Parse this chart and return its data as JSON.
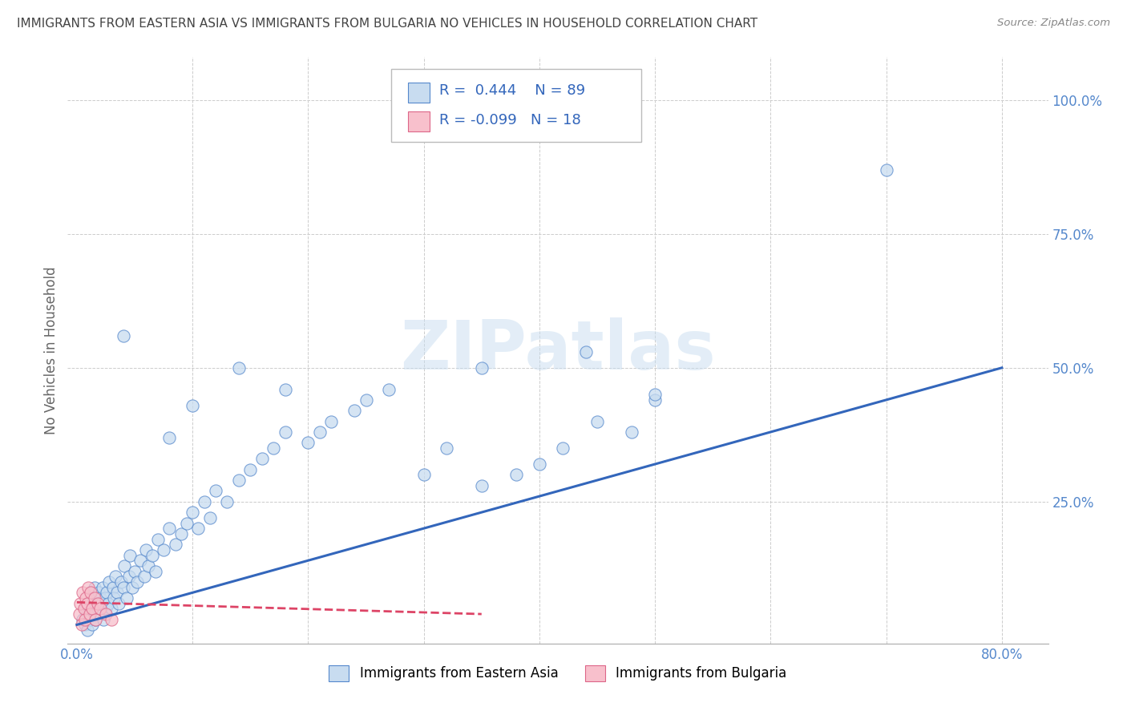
{
  "title": "IMMIGRANTS FROM EASTERN ASIA VS IMMIGRANTS FROM BULGARIA NO VEHICLES IN HOUSEHOLD CORRELATION CHART",
  "source": "Source: ZipAtlas.com",
  "ylabel": "No Vehicles in Household",
  "r1": 0.444,
  "n1": 89,
  "r2": -0.099,
  "n2": 18,
  "color1_fill": "#c8dcf0",
  "color1_edge": "#5588cc",
  "color2_fill": "#f8c0cc",
  "color2_edge": "#dd6688",
  "line1_color": "#3366bb",
  "line2_color": "#dd4466",
  "background_color": "#ffffff",
  "grid_color": "#cccccc",
  "title_color": "#444444",
  "watermark_color": "#c8ddf0",
  "legend1_label": "Immigrants from Eastern Asia",
  "legend2_label": "Immigrants from Bulgaria",
  "xlim": [
    -0.008,
    0.84
  ],
  "ylim": [
    -0.015,
    1.08
  ],
  "scatter1_x": [
    0.005,
    0.007,
    0.008,
    0.009,
    0.01,
    0.01,
    0.011,
    0.012,
    0.013,
    0.013,
    0.014,
    0.015,
    0.015,
    0.016,
    0.017,
    0.018,
    0.019,
    0.02,
    0.02,
    0.021,
    0.022,
    0.023,
    0.024,
    0.025,
    0.026,
    0.027,
    0.028,
    0.03,
    0.031,
    0.032,
    0.033,
    0.035,
    0.036,
    0.038,
    0.04,
    0.041,
    0.043,
    0.045,
    0.046,
    0.048,
    0.05,
    0.052,
    0.055,
    0.058,
    0.06,
    0.062,
    0.065,
    0.068,
    0.07,
    0.075,
    0.08,
    0.085,
    0.09,
    0.095,
    0.1,
    0.105,
    0.11,
    0.115,
    0.12,
    0.13,
    0.14,
    0.15,
    0.16,
    0.17,
    0.18,
    0.2,
    0.21,
    0.22,
    0.24,
    0.25,
    0.27,
    0.3,
    0.32,
    0.35,
    0.38,
    0.4,
    0.42,
    0.45,
    0.48,
    0.5,
    0.04,
    0.08,
    0.1,
    0.14,
    0.18,
    0.35,
    0.44,
    0.5,
    0.7
  ],
  "scatter1_y": [
    0.03,
    0.02,
    0.05,
    0.01,
    0.06,
    0.04,
    0.03,
    0.08,
    0.02,
    0.05,
    0.07,
    0.04,
    0.09,
    0.03,
    0.06,
    0.05,
    0.08,
    0.04,
    0.07,
    0.06,
    0.09,
    0.03,
    0.07,
    0.05,
    0.08,
    0.06,
    0.1,
    0.05,
    0.09,
    0.07,
    0.11,
    0.08,
    0.06,
    0.1,
    0.09,
    0.13,
    0.07,
    0.11,
    0.15,
    0.09,
    0.12,
    0.1,
    0.14,
    0.11,
    0.16,
    0.13,
    0.15,
    0.12,
    0.18,
    0.16,
    0.2,
    0.17,
    0.19,
    0.21,
    0.23,
    0.2,
    0.25,
    0.22,
    0.27,
    0.25,
    0.29,
    0.31,
    0.33,
    0.35,
    0.38,
    0.36,
    0.38,
    0.4,
    0.42,
    0.44,
    0.46,
    0.3,
    0.35,
    0.28,
    0.3,
    0.32,
    0.35,
    0.4,
    0.38,
    0.44,
    0.56,
    0.37,
    0.43,
    0.5,
    0.46,
    0.5,
    0.53,
    0.45,
    0.87
  ],
  "scatter2_x": [
    0.002,
    0.003,
    0.004,
    0.005,
    0.006,
    0.007,
    0.008,
    0.009,
    0.01,
    0.011,
    0.012,
    0.013,
    0.015,
    0.016,
    0.018,
    0.02,
    0.025,
    0.03
  ],
  "scatter2_y": [
    0.04,
    0.06,
    0.02,
    0.08,
    0.05,
    0.03,
    0.07,
    0.06,
    0.09,
    0.04,
    0.08,
    0.05,
    0.07,
    0.03,
    0.06,
    0.05,
    0.04,
    0.03
  ],
  "line1_x0": 0.0,
  "line1_y0": 0.02,
  "line1_x1": 0.8,
  "line1_y1": 0.5,
  "line2_x0": 0.0,
  "line2_y0": 0.062,
  "line2_x1": 0.35,
  "line2_y1": 0.04
}
